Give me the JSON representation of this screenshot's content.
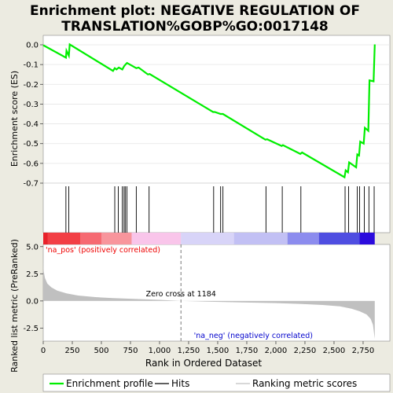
{
  "chart_data": {
    "type": "line",
    "title_line1": "Enrichment plot: NEGATIVE REGULATION OF",
    "title_line2": "TRANSLATION%GOBP%GO:0017148",
    "top_panel": {
      "ylabel": "Enrichment score (ES)",
      "ylim": [
        -0.7,
        0.0
      ],
      "yticks": [
        "0.0",
        "-0.1",
        "-0.2",
        "-0.3",
        "-0.4",
        "-0.5",
        "-0.6",
        "-0.7"
      ],
      "ytick_values": [
        0.0,
        -0.1,
        -0.2,
        -0.3,
        -0.4,
        -0.5,
        -0.6,
        -0.7
      ],
      "es_curve": [
        [
          0,
          -0.002
        ],
        [
          195,
          -0.065
        ],
        [
          200,
          -0.03
        ],
        [
          220,
          -0.055
        ],
        [
          228,
          0.002
        ],
        [
          600,
          -0.132
        ],
        [
          615,
          -0.118
        ],
        [
          630,
          -0.125
        ],
        [
          650,
          -0.115
        ],
        [
          680,
          -0.125
        ],
        [
          695,
          -0.108
        ],
        [
          710,
          -0.098
        ],
        [
          720,
          -0.092
        ],
        [
          800,
          -0.118
        ],
        [
          820,
          -0.115
        ],
        [
          900,
          -0.15
        ],
        [
          915,
          -0.148
        ],
        [
          1460,
          -0.34
        ],
        [
          1475,
          -0.34
        ],
        [
          1525,
          -0.35
        ],
        [
          1545,
          -0.35
        ],
        [
          1910,
          -0.48
        ],
        [
          1925,
          -0.478
        ],
        [
          2050,
          -0.512
        ],
        [
          2060,
          -0.508
        ],
        [
          2210,
          -0.552
        ],
        [
          2225,
          -0.545
        ],
        [
          2590,
          -0.67
        ],
        [
          2600,
          -0.635
        ],
        [
          2620,
          -0.645
        ],
        [
          2630,
          -0.595
        ],
        [
          2690,
          -0.62
        ],
        [
          2700,
          -0.555
        ],
        [
          2715,
          -0.56
        ],
        [
          2725,
          -0.49
        ],
        [
          2755,
          -0.5
        ],
        [
          2765,
          -0.42
        ],
        [
          2795,
          -0.435
        ],
        [
          2805,
          -0.18
        ],
        [
          2840,
          -0.185
        ],
        [
          2850,
          0.002
        ]
      ]
    },
    "hits": [
      195,
      220,
      615,
      645,
      680,
      695,
      705,
      720,
      800,
      910,
      1465,
      1525,
      1545,
      1915,
      2055,
      2215,
      2595,
      2625,
      2700,
      2720,
      2760,
      2800,
      2845
    ],
    "colorbar": {
      "segments": [
        [
          0,
          40,
          "#e8212a"
        ],
        [
          40,
          320,
          "#f23f45"
        ],
        [
          320,
          500,
          "#f66a72"
        ],
        [
          500,
          760,
          "#f8959c"
        ],
        [
          760,
          1184,
          "#f9c5ea"
        ],
        [
          1184,
          1640,
          "#d8d4f8"
        ],
        [
          1640,
          2100,
          "#c2c0f4"
        ],
        [
          2100,
          2370,
          "#8c8cee"
        ],
        [
          2370,
          2720,
          "#4f4ee1"
        ],
        [
          2720,
          2850,
          "#2b0bdd"
        ]
      ]
    },
    "bottom_panel": {
      "ylabel": "Ranked list metric (PreRanked)",
      "ylim": [
        -3.7,
        5.2
      ],
      "yticks": [
        "5.0",
        "2.5",
        "0.0",
        "-2.5"
      ],
      "ytick_values": [
        5.0,
        2.5,
        0.0,
        -2.5
      ],
      "pos_label": "'na_pos' (positively correlated)",
      "neg_label": "'na_neg' (negatively correlated)",
      "zero_cross_label": "Zero cross at 1184",
      "zero_cross": 1184,
      "metric_curve": [
        [
          0,
          3.6
        ],
        [
          5,
          2.7
        ],
        [
          15,
          2.1
        ],
        [
          35,
          1.6
        ],
        [
          70,
          1.25
        ],
        [
          120,
          0.95
        ],
        [
          200,
          0.7
        ],
        [
          300,
          0.5
        ],
        [
          450,
          0.35
        ],
        [
          600,
          0.26
        ],
        [
          800,
          0.18
        ],
        [
          1000,
          0.1
        ],
        [
          1184,
          0.0
        ],
        [
          1400,
          -0.06
        ],
        [
          1700,
          -0.13
        ],
        [
          2000,
          -0.2
        ],
        [
          2200,
          -0.27
        ],
        [
          2400,
          -0.37
        ],
        [
          2550,
          -0.5
        ],
        [
          2650,
          -0.72
        ],
        [
          2720,
          -0.95
        ],
        [
          2780,
          -1.25
        ],
        [
          2815,
          -1.65
        ],
        [
          2835,
          -2.2
        ],
        [
          2850,
          -3.5
        ]
      ]
    },
    "xaxis": {
      "xlabel": "Rank in Ordered Dataset",
      "xlim": [
        0,
        2980
      ],
      "xticks": [
        "0",
        "250",
        "500",
        "750",
        "1,000",
        "1,250",
        "1,500",
        "1,750",
        "2,000",
        "2,250",
        "2,500",
        "2,750"
      ],
      "xtick_values": [
        0,
        250,
        500,
        750,
        1000,
        1250,
        1500,
        1750,
        2000,
        2250,
        2500,
        2750
      ]
    },
    "legend": {
      "placement": "bottom",
      "entries": [
        "Enrichment profile",
        "Hits",
        "Ranking metric scores"
      ]
    },
    "colors": {
      "es_line": "#00ee00",
      "hit_line": "#000000",
      "metric_fill": "#c0c0c0",
      "pos_text": "#ee0000",
      "neg_text": "#0000cc",
      "zero_line": "#777777",
      "background": "#ecebe1",
      "plot_bg": "#ffffff"
    }
  }
}
